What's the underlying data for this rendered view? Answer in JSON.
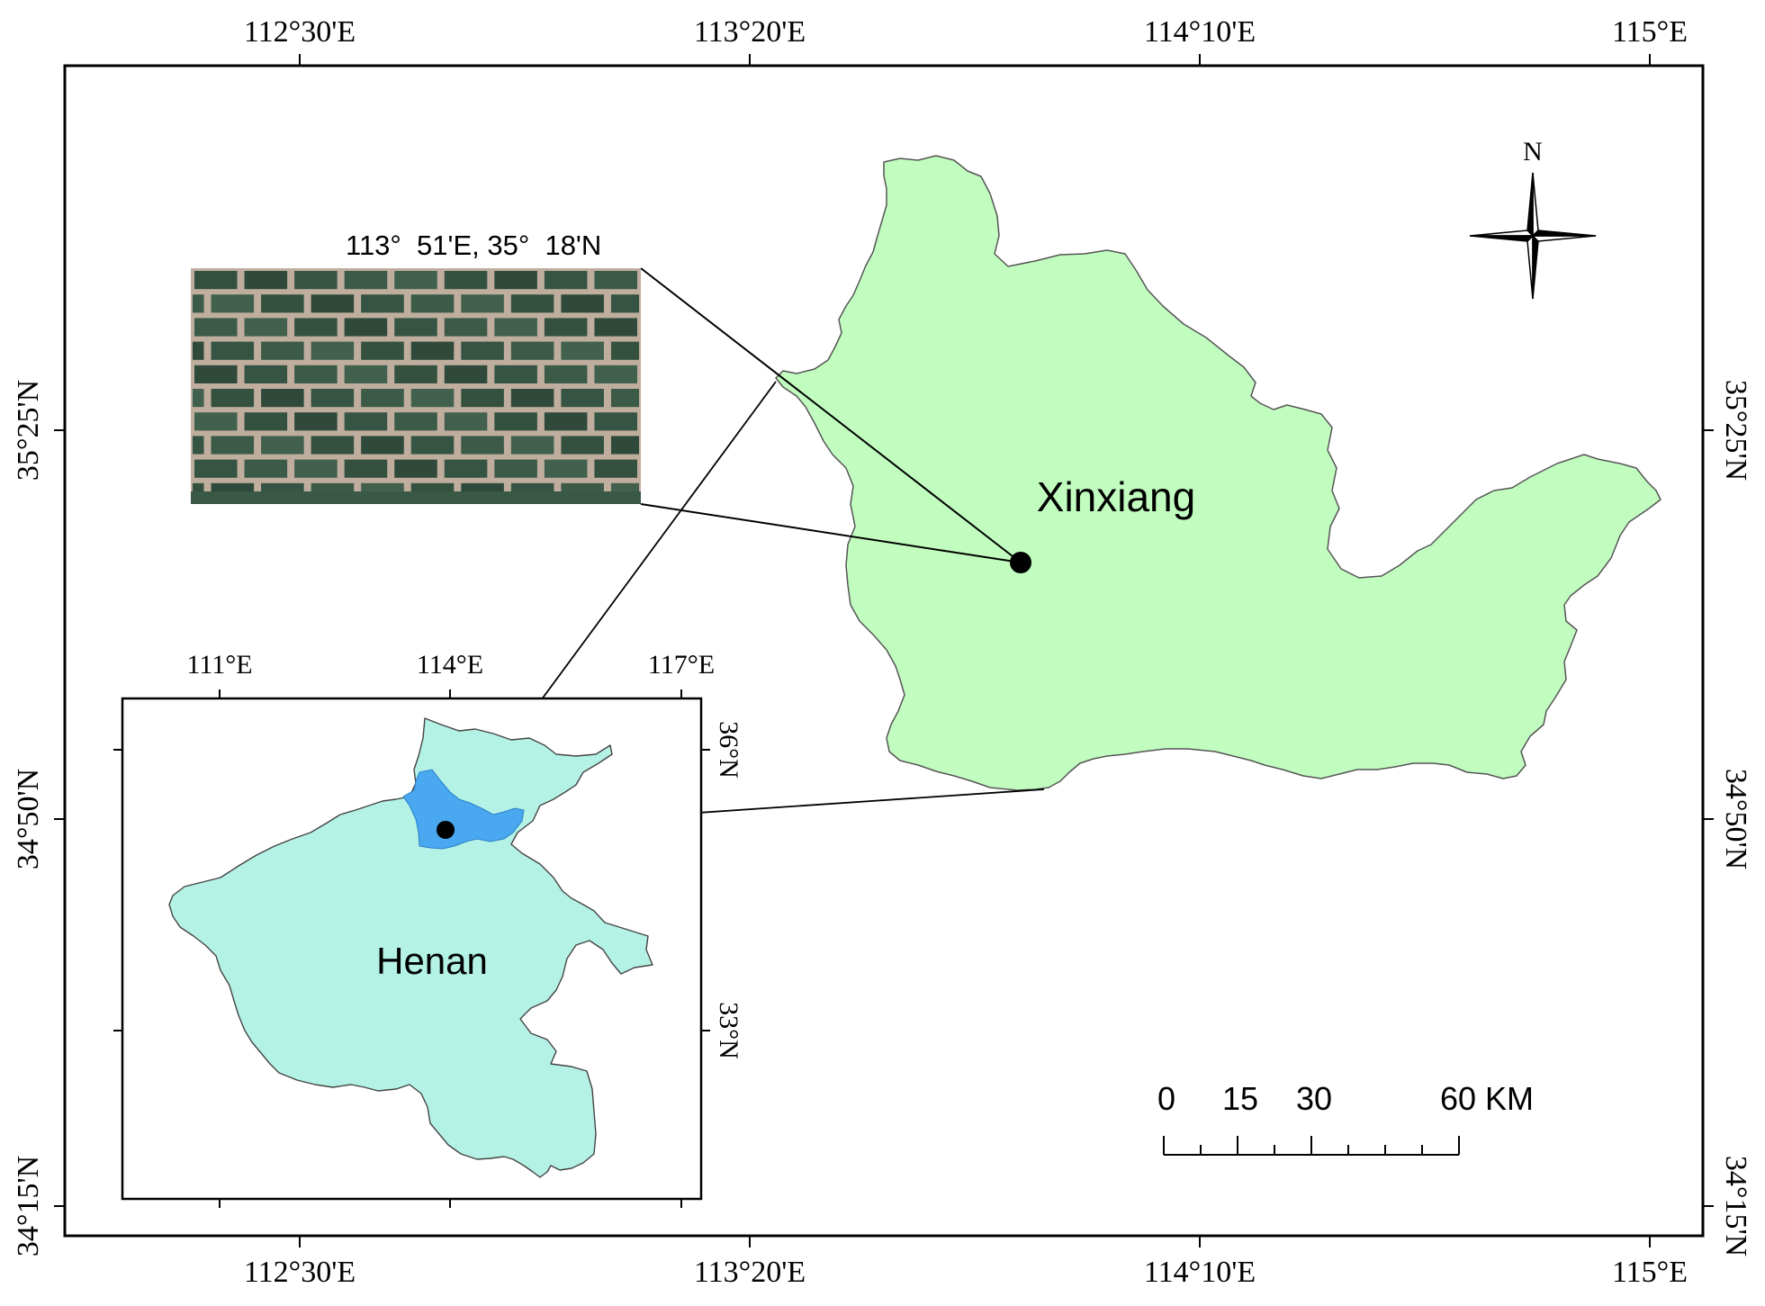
{
  "main_map": {
    "top_ticks": [
      "112°30'E",
      "113°20'E",
      "114°10'E",
      "115°E"
    ],
    "bottom_ticks": [
      "112°30'E",
      "113°20'E",
      "114°10'E",
      "115°E"
    ],
    "left_ticks": [
      "35°25'N",
      "34°50'N",
      "34°15'N"
    ],
    "right_ticks": [
      "35°25'N",
      "34°50'N",
      "34°15'N"
    ],
    "region_label": "Xinxiang",
    "region_color": "#c2fdc0",
    "site_label": "113°  51'E, 35°  18'N",
    "north_label": "N"
  },
  "scale_bar": {
    "labels": [
      "0",
      "15",
      "30",
      "60 KM"
    ]
  },
  "inset": {
    "top_ticks": [
      "111°E",
      "114°E",
      "117°E"
    ],
    "right_ticks": [
      "36°N",
      "33°N"
    ],
    "province_label": "Henan",
    "province_color": "#b5f2e6",
    "highlight_color": "#4aa8f0"
  },
  "satellite_image": {
    "field_color": "#3a5846",
    "border_color": "#bfae9e"
  }
}
